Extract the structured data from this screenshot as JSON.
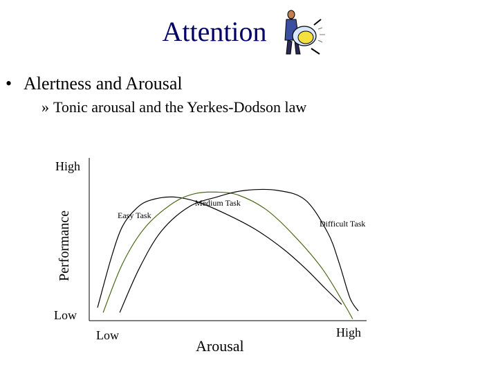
{
  "slide": {
    "title": "Attention",
    "bullet": "Alertness and Arousal",
    "bullet_marker": "•",
    "sub_bullet": "Tonic arousal and the Yerkes-Dodson law",
    "sub_marker": "»",
    "title_color": "#000066"
  },
  "clipart": {
    "icon": "person-with-drum-icon"
  },
  "chart_data": {
    "type": "line",
    "xlabel": "Arousal",
    "ylabel": "Performance",
    "x_ticks": [
      "Low",
      "High"
    ],
    "y_ticks": [
      "Low",
      "High"
    ],
    "xlim": [
      0,
      1
    ],
    "ylim": [
      0,
      1
    ],
    "grid": false,
    "series": [
      {
        "name": "Easy Task",
        "color": "#000000",
        "points": [
          [
            0.03,
            0.08
          ],
          [
            0.08,
            0.39
          ],
          [
            0.12,
            0.58
          ],
          [
            0.17,
            0.69
          ],
          [
            0.22,
            0.74
          ],
          [
            0.3,
            0.76
          ],
          [
            0.39,
            0.73
          ],
          [
            0.5,
            0.65
          ],
          [
            0.6,
            0.56
          ],
          [
            0.7,
            0.44
          ],
          [
            0.78,
            0.32
          ],
          [
            0.85,
            0.2
          ],
          [
            0.91,
            0.1
          ]
        ]
      },
      {
        "name": "Medium Task",
        "color": "#4a6a1a",
        "points": [
          [
            0.05,
            0.05
          ],
          [
            0.12,
            0.35
          ],
          [
            0.2,
            0.57
          ],
          [
            0.3,
            0.72
          ],
          [
            0.38,
            0.78
          ],
          [
            0.46,
            0.79
          ],
          [
            0.54,
            0.77
          ],
          [
            0.64,
            0.68
          ],
          [
            0.74,
            0.52
          ],
          [
            0.84,
            0.32
          ],
          [
            0.92,
            0.1
          ],
          [
            0.95,
            0.01
          ]
        ]
      },
      {
        "name": "Difficult Task",
        "color": "#000000",
        "points": [
          [
            0.11,
            0.05
          ],
          [
            0.18,
            0.32
          ],
          [
            0.26,
            0.55
          ],
          [
            0.36,
            0.7
          ],
          [
            0.46,
            0.76
          ],
          [
            0.56,
            0.8
          ],
          [
            0.68,
            0.8
          ],
          [
            0.78,
            0.74
          ],
          [
            0.86,
            0.54
          ],
          [
            0.9,
            0.36
          ],
          [
            0.94,
            0.14
          ],
          [
            0.97,
            0.06
          ]
        ]
      }
    ]
  }
}
